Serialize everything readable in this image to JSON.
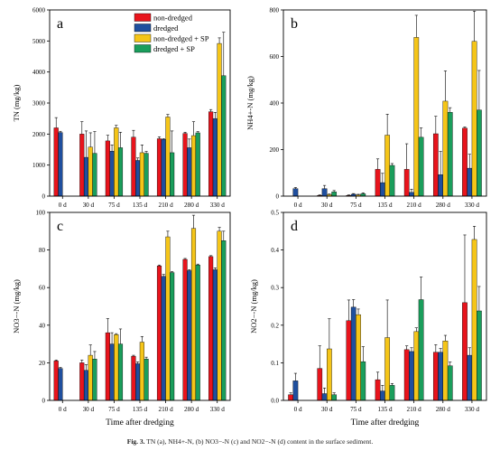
{
  "figure": {
    "xlabel": "Time after dredging",
    "caption_label": "Fig. 3.",
    "caption_text": "TN (a), NH4+-N, (b) NO3−-N (c) and NO2−-N (d) content in the surface sediment."
  },
  "legend": [
    {
      "name": "non-dredged",
      "color": "#e8141c"
    },
    {
      "name": "dredged",
      "color": "#1f4f9e"
    },
    {
      "name": "non-dredged + SP",
      "color": "#f5c518"
    },
    {
      "name": "dredged + SP",
      "color": "#1a9e5c"
    }
  ],
  "chart_data": [
    {
      "panel": "a",
      "type": "bar",
      "ylabel": "TN (mg/kg)",
      "ylim": [
        0,
        6000
      ],
      "yticks": [
        0,
        1000,
        2000,
        3000,
        4000,
        5000,
        6000
      ],
      "categories": [
        "0 d",
        "30 d",
        "75 d",
        "135 d",
        "210 d",
        "280 d",
        "330 d"
      ],
      "series": [
        {
          "name": "non-dredged",
          "values": [
            2200,
            2000,
            1780,
            1900,
            1850,
            2020,
            2720
          ],
          "errors": [
            330,
            400,
            180,
            220,
            60,
            40,
            70
          ]
        },
        {
          "name": "dredged",
          "values": [
            2050,
            1250,
            1450,
            1150,
            1830,
            1560,
            2500
          ],
          "errors": [
            40,
            850,
            200,
            80,
            20,
            280,
            200
          ]
        },
        {
          "name": "non-dredged + SP",
          "values": [
            null,
            1580,
            2200,
            1400,
            2550,
            1950,
            4920
          ],
          "errors": [
            null,
            460,
            80,
            250,
            80,
            450,
            180
          ]
        },
        {
          "name": "dredged + SP",
          "values": [
            null,
            1380,
            1560,
            1380,
            1400,
            2040,
            3880
          ],
          "errors": [
            null,
            700,
            500,
            60,
            700,
            40,
            1400
          ]
        }
      ]
    },
    {
      "panel": "b",
      "type": "bar",
      "ylabel": "NH4+-N (mg/kg)",
      "ylim": [
        0,
        800
      ],
      "yticks": [
        0,
        200,
        400,
        600,
        800
      ],
      "categories": [
        "0 d",
        "30 d",
        "75 d",
        "135 d",
        "210 d",
        "280 d",
        "330 d"
      ],
      "series": [
        {
          "name": "non-dredged",
          "values": [
            0,
            3,
            3,
            115,
            115,
            268,
            292
          ],
          "errors": [
            0,
            2,
            2,
            45,
            110,
            75,
            5
          ]
        },
        {
          "name": "dredged",
          "values": [
            32,
            32,
            8,
            58,
            16,
            92,
            120
          ],
          "errors": [
            5,
            14,
            3,
            40,
            14,
            100,
            60
          ]
        },
        {
          "name": "non-dredged + SP",
          "values": [
            null,
            6,
            5,
            262,
            682,
            408,
            665
          ],
          "errors": [
            null,
            3,
            3,
            90,
            95,
            130,
            130
          ]
        },
        {
          "name": "dredged + SP",
          "values": [
            null,
            18,
            10,
            132,
            253,
            360,
            370
          ],
          "errors": [
            null,
            6,
            4,
            8,
            40,
            20,
            170
          ]
        }
      ]
    },
    {
      "panel": "c",
      "type": "bar",
      "ylabel": "NO3−-N (mg/kg)",
      "ylim": [
        0,
        100
      ],
      "yticks": [
        0,
        20,
        40,
        60,
        80,
        100
      ],
      "categories": [
        "0 d",
        "30 d",
        "75 d",
        "135 d",
        "210 d",
        "280 d",
        "330 d"
      ],
      "series": [
        {
          "name": "non-dredged",
          "values": [
            21,
            20,
            36,
            23.5,
            71.5,
            75,
            76.5
          ],
          "errors": [
            0.5,
            1.5,
            7.5,
            0.5,
            0.5,
            0.5,
            0.5
          ]
        },
        {
          "name": "dredged",
          "values": [
            17,
            16,
            30,
            19.5,
            66,
            69,
            69.5
          ],
          "errors": [
            0.5,
            3,
            6,
            1,
            1,
            0.5,
            1
          ]
        },
        {
          "name": "non-dredged + SP",
          "values": [
            null,
            24,
            35,
            31,
            87,
            91.5,
            90
          ],
          "errors": [
            null,
            5.5,
            0.5,
            3,
            3,
            7,
            2
          ]
        },
        {
          "name": "dredged + SP",
          "values": [
            null,
            22,
            30,
            22,
            68,
            72,
            85
          ],
          "errors": [
            null,
            4,
            8,
            1,
            0.5,
            0.5,
            5
          ]
        }
      ]
    },
    {
      "panel": "d",
      "type": "bar",
      "ylabel": "NO2−-N (mg/kg)",
      "ylim": [
        0,
        0.5
      ],
      "yticks": [
        0.0,
        0.1,
        0.2,
        0.3,
        0.4,
        0.5
      ],
      "categories": [
        "0 d",
        "30 d",
        "75 d",
        "135 d",
        "210 d",
        "280 d",
        "330 d"
      ],
      "series": [
        {
          "name": "non-dredged",
          "values": [
            0.015,
            0.085,
            0.212,
            0.055,
            0.135,
            0.128,
            0.26
          ],
          "errors": [
            0.005,
            0.06,
            0.055,
            0.02,
            0.01,
            0.02,
            0.18
          ]
        },
        {
          "name": "dredged",
          "values": [
            0.052,
            0.018,
            0.248,
            0.025,
            0.13,
            0.128,
            0.12
          ],
          "errors": [
            0.02,
            0.015,
            0.02,
            0.015,
            0.01,
            0.01,
            0.02
          ]
        },
        {
          "name": "non-dredged + SP",
          "values": [
            null,
            0.137,
            0.228,
            0.167,
            0.183,
            0.158,
            0.428
          ],
          "errors": [
            null,
            0.08,
            0.015,
            0.1,
            0.01,
            0.015,
            0.035
          ]
        },
        {
          "name": "dredged + SP",
          "values": [
            null,
            0.015,
            0.103,
            0.04,
            0.268,
            0.092,
            0.238
          ],
          "errors": [
            null,
            0.005,
            0.04,
            0.005,
            0.06,
            0.01,
            0.065
          ]
        }
      ]
    }
  ]
}
